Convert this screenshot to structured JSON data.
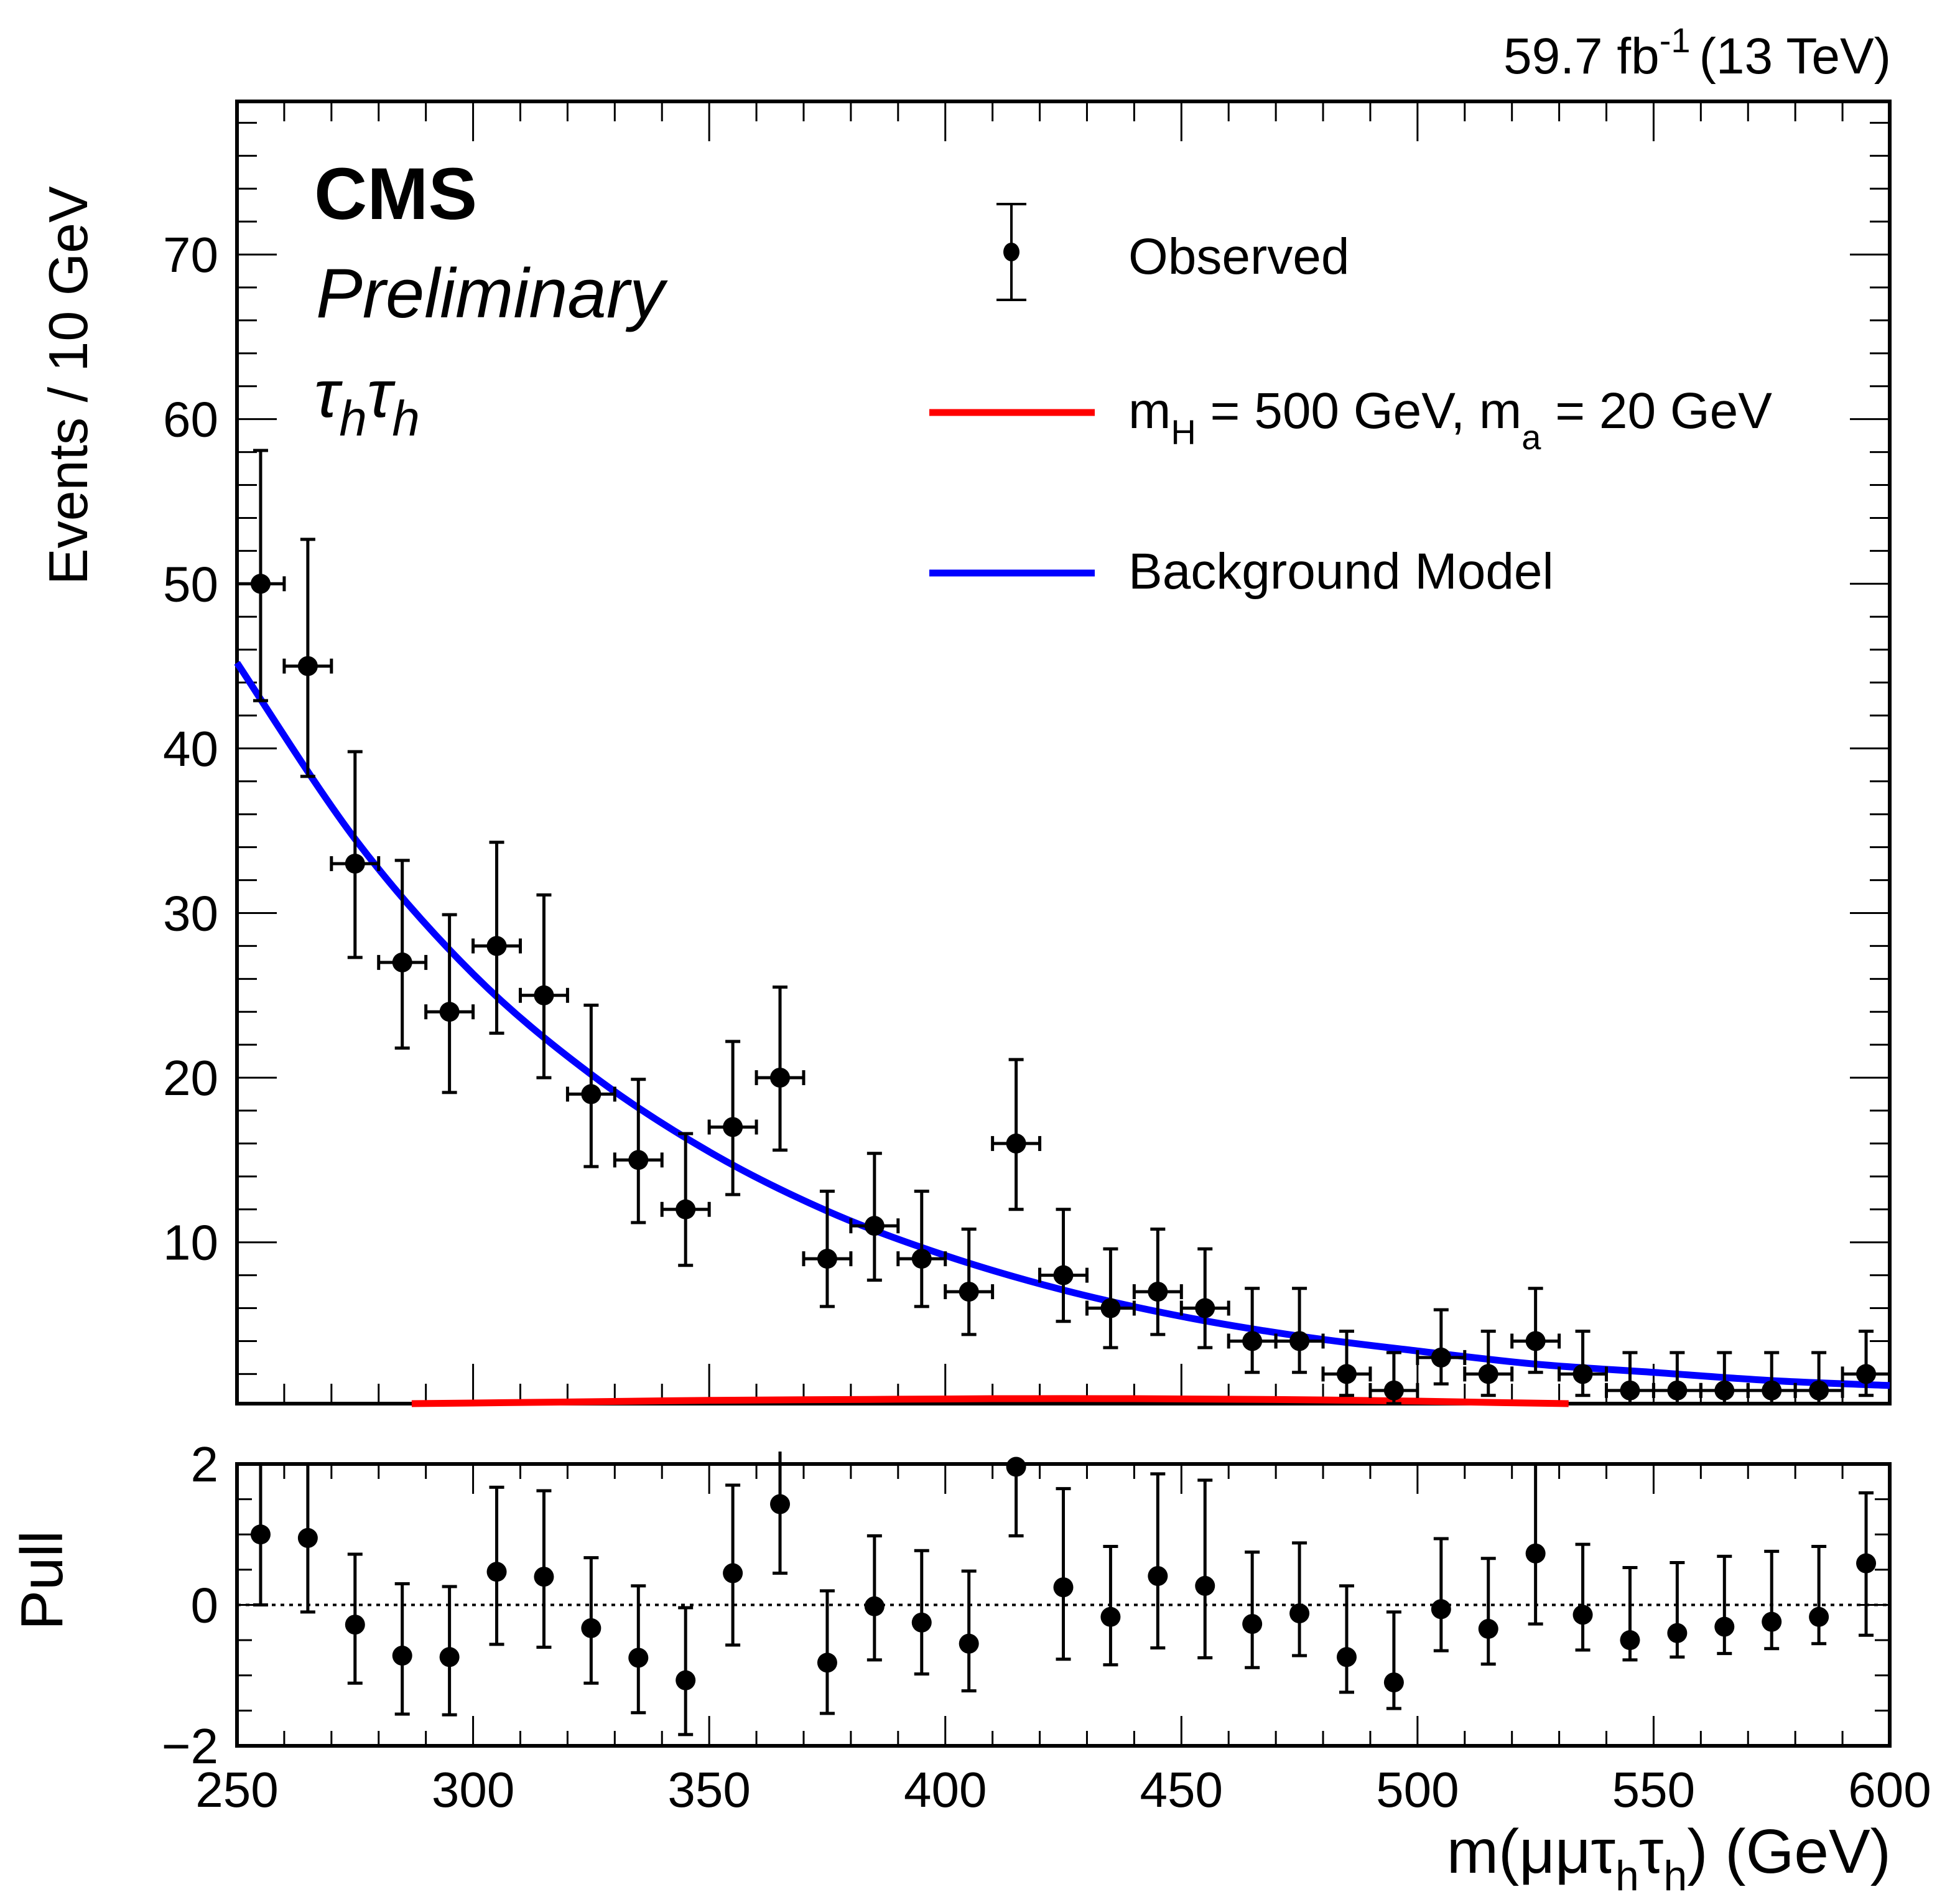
{
  "header": {
    "lumi_label": "59.7 fb",
    "lumi_sup": "-1",
    "energy_label": "(13 TeV)"
  },
  "annotations": {
    "experiment": "CMS",
    "status": "Preliminary",
    "channel_tau1": "τ",
    "channel_sub1": "h",
    "channel_tau2": "τ",
    "channel_sub2": "h"
  },
  "legend": {
    "observed": "Observed",
    "signal_main": "m",
    "signal_sub_H": "H",
    "signal_mid": " = 500 GeV, m",
    "signal_sub_a": "a",
    "signal_end": " = 20 GeV",
    "background": "Background Model"
  },
  "colors": {
    "signal": "#ff0000",
    "background": "#0000ff",
    "data": "#000000"
  },
  "chart_data": [
    {
      "type": "scatter",
      "panel": "main",
      "title": "",
      "xlabel": "m(μμτhτh) (GeV)",
      "ylabel": "Events / 10 GeV",
      "xlim": [
        250,
        600
      ],
      "ylim": [
        0.2,
        79.3
      ],
      "x_ticks": [
        250,
        300,
        350,
        400,
        450,
        500,
        550,
        600
      ],
      "y_ticks": [
        10,
        20,
        30,
        40,
        50,
        60,
        70
      ],
      "y_tick_labels": [
        "10",
        "20",
        "30",
        "40",
        "50",
        "60",
        "70"
      ],
      "legend_position": "top-right",
      "bin_width": 10,
      "series": [
        {
          "name": "Observed",
          "x": [
            255,
            265,
            275,
            285,
            295,
            305,
            315,
            325,
            335,
            345,
            355,
            365,
            375,
            385,
            395,
            405,
            415,
            425,
            435,
            445,
            455,
            465,
            475,
            485,
            495,
            505,
            515,
            525,
            535,
            545,
            555,
            565,
            575,
            585,
            595
          ],
          "y": [
            50,
            45,
            33,
            27,
            24,
            28,
            25,
            19,
            15,
            12,
            17,
            20,
            9,
            11,
            9,
            7,
            16,
            8,
            6,
            7,
            6,
            4,
            4,
            2,
            1,
            3,
            2,
            4,
            2,
            1,
            1,
            1,
            1,
            1,
            2
          ],
          "err_up": [
            8.1,
            7.7,
            6.8,
            6.2,
            5.9,
            6.3,
            6.1,
            5.4,
            4.9,
            4.6,
            5.2,
            5.5,
            4.1,
            4.4,
            4.1,
            3.8,
            5.1,
            4.0,
            3.6,
            3.8,
            3.6,
            3.2,
            3.2,
            2.6,
            2.3,
            2.9,
            2.6,
            3.2,
            2.6,
            2.3,
            2.3,
            2.3,
            2.3,
            2.3,
            2.6
          ],
          "err_down": [
            7.1,
            6.7,
            5.7,
            5.2,
            4.9,
            5.3,
            5.0,
            4.4,
            3.8,
            3.4,
            4.1,
            4.4,
            2.9,
            3.3,
            2.9,
            2.6,
            4.0,
            2.8,
            2.4,
            2.6,
            2.4,
            1.9,
            1.9,
            1.3,
            0.8,
            1.6,
            1.3,
            1.9,
            1.3,
            0.8,
            0.8,
            0.8,
            0.8,
            0.8,
            1.3
          ]
        },
        {
          "name": "Background Model",
          "type": "line",
          "x": [
            250,
            275,
            300,
            325,
            350,
            375,
            400,
            425,
            450,
            475,
            500,
            525,
            550,
            575,
            600
          ],
          "y": [
            45.2,
            34.5,
            26.3,
            20.2,
            15.5,
            11.9,
            9.2,
            7.1,
            5.5,
            4.3,
            3.4,
            2.6,
            2.1,
            1.6,
            1.3
          ]
        },
        {
          "name": "m_H = 500 GeV, m_a = 20 GeV",
          "type": "line",
          "x": [
            287,
            320,
            350,
            380,
            410,
            440,
            470,
            500,
            520,
            532
          ],
          "y": [
            0.2,
            0.3,
            0.4,
            0.45,
            0.5,
            0.5,
            0.45,
            0.35,
            0.25,
            0.2
          ]
        }
      ]
    },
    {
      "type": "scatter",
      "panel": "pull",
      "xlabel": "m(μμτhτh) (GeV)",
      "ylabel": "Pull",
      "xlim": [
        250,
        600
      ],
      "ylim": [
        -2,
        2
      ],
      "x_ticks": [
        250,
        300,
        350,
        400,
        450,
        500,
        550,
        600
      ],
      "x_tick_labels": [
        "250",
        "300",
        "350",
        "400",
        "450",
        "500",
        "550",
        "600"
      ],
      "y_ticks": [
        -2,
        0,
        2
      ],
      "y_tick_labels": [
        "−2",
        "0",
        "2"
      ],
      "reference_line": 0,
      "series": [
        {
          "name": "Pull",
          "x": [
            255,
            265,
            275,
            285,
            295,
            305,
            315,
            325,
            335,
            345,
            355,
            365,
            375,
            385,
            395,
            405,
            415,
            425,
            435,
            445,
            455,
            465,
            475,
            485,
            495,
            505,
            515,
            525,
            535,
            545,
            555,
            565,
            575,
            585,
            595
          ],
          "y": [
            1.0,
            0.95,
            -0.28,
            -0.72,
            -0.74,
            0.47,
            0.4,
            -0.33,
            -0.75,
            -1.07,
            0.45,
            1.43,
            -0.82,
            -0.02,
            -0.25,
            -0.55,
            1.96,
            0.25,
            -0.17,
            0.41,
            0.27,
            -0.27,
            -0.12,
            -0.74,
            -1.1,
            -0.06,
            -0.34,
            0.73,
            -0.14,
            -0.5,
            -0.4,
            -0.31,
            -0.24,
            -0.17,
            0.59
          ],
          "err_up": [
            1.0,
            1.05,
            1.0,
            1.02,
            1.0,
            1.2,
            1.22,
            1.0,
            1.02,
            1.03,
            1.25,
            1.0,
            1.02,
            1.0,
            1.02,
            1.03,
            0.04,
            1.4,
            1.0,
            1.45,
            1.5,
            1.02,
            1.0,
            1.01,
            1.0,
            1.0,
            1.0,
            1.27,
            1.0,
            1.03,
            1.0,
            1.0,
            1.0,
            1.0,
            1.0
          ],
          "err_down": [
            1.0,
            1.05,
            0.83,
            0.83,
            0.82,
            1.03,
            1.0,
            0.78,
            0.78,
            0.77,
            1.02,
            0.98,
            0.72,
            0.76,
            0.73,
            0.67,
            0.98,
            1.02,
            0.68,
            1.02,
            1.02,
            0.62,
            0.6,
            0.5,
            0.37,
            0.59,
            0.5,
            1.0,
            0.5,
            0.28,
            0.34,
            0.38,
            0.38,
            0.38,
            1.02
          ]
        }
      ]
    }
  ]
}
